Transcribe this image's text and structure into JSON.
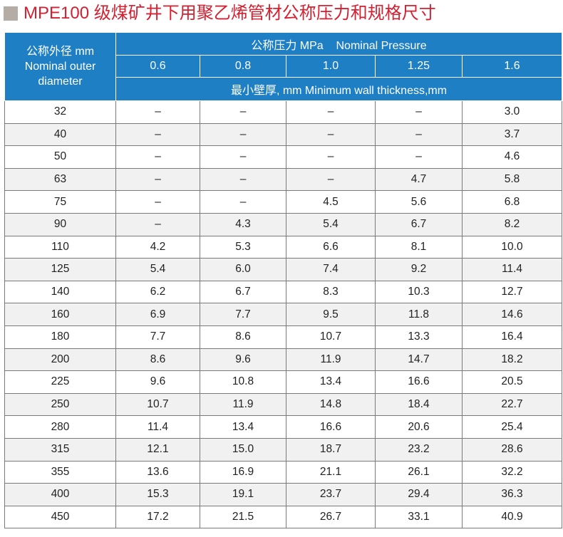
{
  "title": "MPE100 级煤矿井下用聚乙烯管材公称压力和规格尺寸",
  "table": {
    "outer_diameter_header_cn": "公称外径 mm",
    "outer_diameter_header_en_1": "Nominal outer",
    "outer_diameter_header_en_2": "diameter",
    "pressure_header": "公称压力 MPa    Nominal Pressure",
    "pressures": [
      "0.6",
      "0.8",
      "1.0",
      "1.25",
      "1.6"
    ],
    "wall_header": "最小壁厚, mm  Minimum wall thickness,mm",
    "rows": [
      {
        "d": "32",
        "v": [
          "–",
          "–",
          "–",
          "–",
          "3.0"
        ]
      },
      {
        "d": "40",
        "v": [
          "–",
          "–",
          "–",
          "–",
          "3.7"
        ]
      },
      {
        "d": "50",
        "v": [
          "–",
          "–",
          "–",
          "–",
          "4.6"
        ]
      },
      {
        "d": "63",
        "v": [
          "–",
          "–",
          "–",
          "4.7",
          "5.8"
        ]
      },
      {
        "d": "75",
        "v": [
          "–",
          "–",
          "4.5",
          "5.6",
          "6.8"
        ]
      },
      {
        "d": "90",
        "v": [
          "–",
          "4.3",
          "5.4",
          "6.7",
          "8.2"
        ]
      },
      {
        "d": "110",
        "v": [
          "4.2",
          "5.3",
          "6.6",
          "8.1",
          "10.0"
        ]
      },
      {
        "d": "125",
        "v": [
          "5.4",
          "6.0",
          "7.4",
          "9.2",
          "11.4"
        ]
      },
      {
        "d": "140",
        "v": [
          "6.2",
          "6.7",
          "8.3",
          "10.3",
          "12.7"
        ]
      },
      {
        "d": "160",
        "v": [
          "6.9",
          "7.7",
          "9.5",
          "11.8",
          "14.6"
        ]
      },
      {
        "d": "180",
        "v": [
          "7.7",
          "8.6",
          "10.7",
          "13.3",
          "16.4"
        ]
      },
      {
        "d": "200",
        "v": [
          "8.6",
          "9.6",
          "11.9",
          "14.7",
          "18.2"
        ]
      },
      {
        "d": "225",
        "v": [
          "9.6",
          "10.8",
          "13.4",
          "16.6",
          "20.5"
        ]
      },
      {
        "d": "250",
        "v": [
          "10.7",
          "11.9",
          "14.8",
          "18.4",
          "22.7"
        ]
      },
      {
        "d": "280",
        "v": [
          "11.4",
          "13.4",
          "16.6",
          "20.6",
          "25.4"
        ]
      },
      {
        "d": "315",
        "v": [
          "12.1",
          "15.0",
          "18.7",
          "23.2",
          "28.6"
        ]
      },
      {
        "d": "355",
        "v": [
          "13.6",
          "16.9",
          "21.1",
          "26.1",
          "32.2"
        ]
      },
      {
        "d": "400",
        "v": [
          "15.3",
          "19.1",
          "23.7",
          "29.4",
          "36.3"
        ]
      },
      {
        "d": "450",
        "v": [
          "17.2",
          "21.5",
          "26.7",
          "33.1",
          "40.9"
        ]
      }
    ]
  }
}
